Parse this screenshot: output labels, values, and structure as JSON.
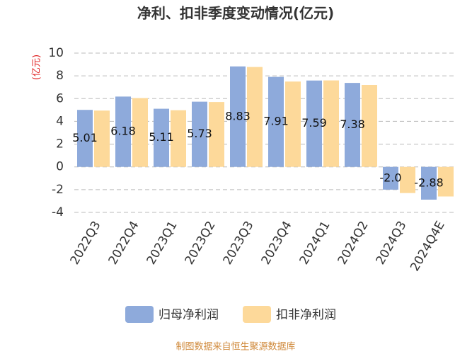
{
  "chart_data": {
    "type": "bar",
    "title": "净利、扣非季度变动情况(亿元)",
    "y_label": "(亿元)",
    "categories": [
      "2022Q3",
      "2022Q4",
      "2023Q1",
      "2023Q2",
      "2023Q3",
      "2023Q4",
      "2024Q1",
      "2024Q2",
      "2024Q3",
      "2024Q4E"
    ],
    "series": [
      {
        "name": "归母净利润",
        "color": "#8eaadb",
        "values": [
          5.01,
          6.18,
          5.11,
          5.73,
          8.83,
          7.91,
          7.59,
          7.38,
          -2.0,
          -2.88
        ],
        "value_labels": [
          "5.01",
          "6.18",
          "5.11",
          "5.73",
          "8.83",
          "7.91",
          "7.59",
          "7.38",
          "-2.0",
          "-2.88"
        ]
      },
      {
        "name": "扣非净利润",
        "color": "#fdd99a",
        "values": [
          4.95,
          6.05,
          4.98,
          5.7,
          8.78,
          7.5,
          7.6,
          7.2,
          -2.3,
          -2.6
        ]
      }
    ],
    "ylim": [
      -4,
      10
    ],
    "yticks": [
      -4,
      -2,
      0,
      2,
      4,
      6,
      8,
      10
    ],
    "grid": true,
    "source": "制图数据来自恒生聚源数据库"
  }
}
